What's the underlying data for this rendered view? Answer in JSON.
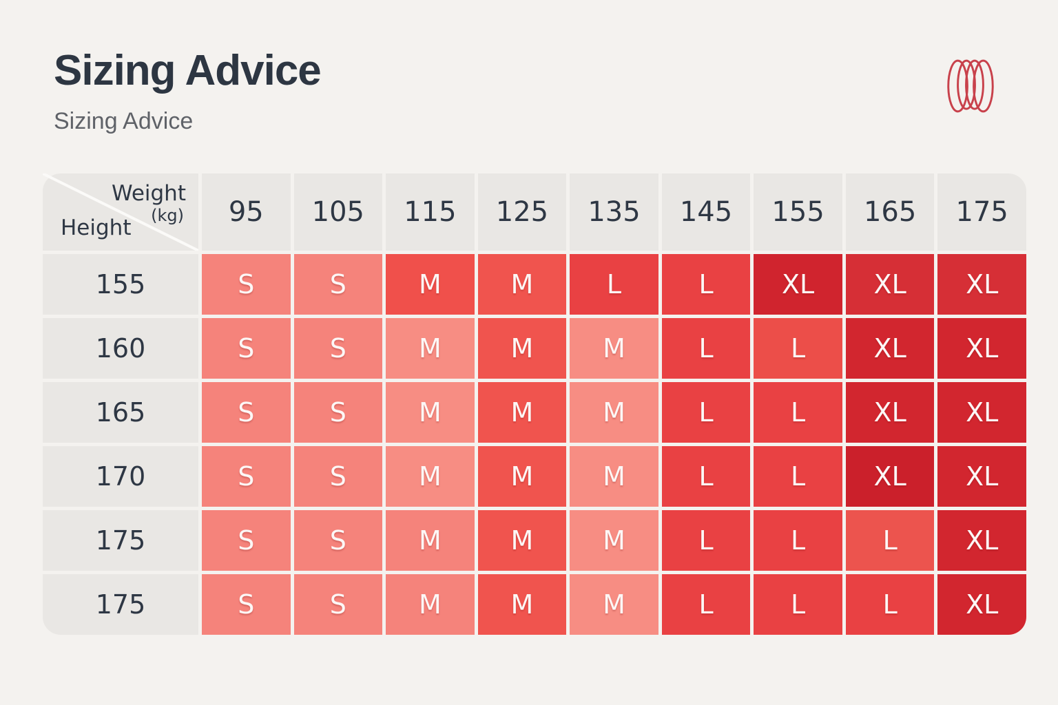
{
  "header": {
    "title": "Sizing Advice",
    "subtitle": "Sizing Advice"
  },
  "logo": {
    "name": "coil-rings-logo",
    "color": "#C8414B"
  },
  "table": {
    "corner": {
      "weight_label": "Weight",
      "weight_unit": "(kg)",
      "height_label": "Height"
    },
    "weight_headers": [
      "95",
      "105",
      "115",
      "125",
      "135",
      "145",
      "155",
      "165",
      "175"
    ],
    "rows": [
      {
        "height": "155",
        "cells": [
          {
            "size": "S",
            "color": "#F5837B"
          },
          {
            "size": "S",
            "color": "#F5837B"
          },
          {
            "size": "M",
            "color": "#F0504B"
          },
          {
            "size": "M",
            "color": "#F0544E"
          },
          {
            "size": "L",
            "color": "#E94143"
          },
          {
            "size": "L",
            "color": "#E94143"
          },
          {
            "size": "XL",
            "color": "#D0242E"
          },
          {
            "size": "XL",
            "color": "#D62F36"
          },
          {
            "size": "XL",
            "color": "#D62F36"
          }
        ]
      },
      {
        "height": "160",
        "cells": [
          {
            "size": "S",
            "color": "#F5837B"
          },
          {
            "size": "S",
            "color": "#F5837B"
          },
          {
            "size": "M",
            "color": "#F78D83"
          },
          {
            "size": "M",
            "color": "#F0544E"
          },
          {
            "size": "M",
            "color": "#F78D83"
          },
          {
            "size": "L",
            "color": "#E94143"
          },
          {
            "size": "L",
            "color": "#EC4E49"
          },
          {
            "size": "XL",
            "color": "#D2262F"
          },
          {
            "size": "XL",
            "color": "#D2262F"
          }
        ]
      },
      {
        "height": "165",
        "cells": [
          {
            "size": "S",
            "color": "#F5837B"
          },
          {
            "size": "S",
            "color": "#F5837B"
          },
          {
            "size": "M",
            "color": "#F78D83"
          },
          {
            "size": "M",
            "color": "#F0544E"
          },
          {
            "size": "M",
            "color": "#F78D83"
          },
          {
            "size": "L",
            "color": "#E94143"
          },
          {
            "size": "L",
            "color": "#E94143"
          },
          {
            "size": "XL",
            "color": "#D2262F"
          },
          {
            "size": "XL",
            "color": "#D2262F"
          }
        ]
      },
      {
        "height": "170",
        "cells": [
          {
            "size": "S",
            "color": "#F5837B"
          },
          {
            "size": "S",
            "color": "#F5837B"
          },
          {
            "size": "M",
            "color": "#F78D83"
          },
          {
            "size": "M",
            "color": "#F0544E"
          },
          {
            "size": "M",
            "color": "#F78D83"
          },
          {
            "size": "L",
            "color": "#E94143"
          },
          {
            "size": "L",
            "color": "#E94143"
          },
          {
            "size": "XL",
            "color": "#CB202B"
          },
          {
            "size": "XL",
            "color": "#D2262F"
          }
        ]
      },
      {
        "height": "175",
        "cells": [
          {
            "size": "S",
            "color": "#F5837B"
          },
          {
            "size": "S",
            "color": "#F5837B"
          },
          {
            "size": "M",
            "color": "#F5837B"
          },
          {
            "size": "M",
            "color": "#F0544E"
          },
          {
            "size": "M",
            "color": "#F78D83"
          },
          {
            "size": "L",
            "color": "#E94143"
          },
          {
            "size": "L",
            "color": "#E94143"
          },
          {
            "size": "L",
            "color": "#EC544E"
          },
          {
            "size": "XL",
            "color": "#D2262F"
          }
        ]
      },
      {
        "height": "175",
        "cells": [
          {
            "size": "S",
            "color": "#F5837B"
          },
          {
            "size": "S",
            "color": "#F5837B"
          },
          {
            "size": "M",
            "color": "#F5837B"
          },
          {
            "size": "M",
            "color": "#F0544E"
          },
          {
            "size": "M",
            "color": "#F78D83"
          },
          {
            "size": "L",
            "color": "#E94143"
          },
          {
            "size": "L",
            "color": "#E94143"
          },
          {
            "size": "L",
            "color": "#E94143"
          },
          {
            "size": "XL",
            "color": "#D2262F"
          }
        ]
      }
    ]
  },
  "chart_data": {
    "type": "heatmap",
    "title": "Sizing Advice",
    "x_label": "Weight (kg)",
    "y_label": "Height",
    "columns": [
      95,
      105,
      115,
      125,
      135,
      145,
      155,
      165,
      175
    ],
    "rows": [
      155,
      160,
      165,
      170,
      175,
      175
    ],
    "values": [
      [
        "S",
        "S",
        "M",
        "M",
        "L",
        "L",
        "XL",
        "XL",
        "XL"
      ],
      [
        "S",
        "S",
        "M",
        "M",
        "M",
        "L",
        "L",
        "XL",
        "XL"
      ],
      [
        "S",
        "S",
        "M",
        "M",
        "M",
        "L",
        "L",
        "XL",
        "XL"
      ],
      [
        "S",
        "S",
        "M",
        "M",
        "M",
        "L",
        "L",
        "XL",
        "XL"
      ],
      [
        "S",
        "S",
        "M",
        "M",
        "M",
        "L",
        "L",
        "L",
        "XL"
      ],
      [
        "S",
        "S",
        "M",
        "M",
        "M",
        "L",
        "L",
        "L",
        "XL"
      ]
    ],
    "color_scale": {
      "S": "#F5837B",
      "M": "#F0544E",
      "L": "#E94143",
      "XL": "#D2262F"
    },
    "legend_position": "none",
    "grid": false
  }
}
